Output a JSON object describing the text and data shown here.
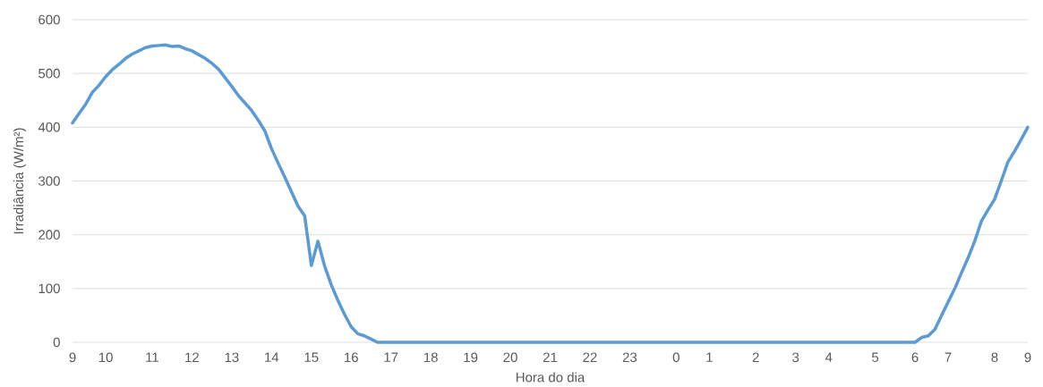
{
  "chart_data": {
    "type": "line",
    "xlabel": "Hora do dia",
    "ylabel": "Irradiância (W/m²)",
    "categories": [
      "9",
      null,
      null,
      null,
      null,
      "10",
      null,
      null,
      null,
      null,
      null,
      null,
      "11",
      null,
      null,
      null,
      null,
      null,
      "12",
      null,
      null,
      null,
      null,
      null,
      "13",
      null,
      null,
      null,
      null,
      null,
      "14",
      null,
      null,
      null,
      null,
      null,
      "15",
      null,
      null,
      null,
      null,
      null,
      "16",
      null,
      null,
      null,
      null,
      null,
      "17",
      null,
      null,
      null,
      null,
      null,
      "18",
      null,
      null,
      null,
      null,
      null,
      "19",
      null,
      null,
      null,
      null,
      null,
      "20",
      null,
      null,
      null,
      null,
      null,
      "21",
      null,
      null,
      null,
      null,
      null,
      "22",
      null,
      null,
      null,
      null,
      null,
      "23",
      null,
      null,
      null,
      null,
      null,
      null,
      "0",
      null,
      null,
      null,
      null,
      "1",
      null,
      null,
      null,
      null,
      null,
      null,
      "2",
      null,
      null,
      null,
      null,
      null,
      "3",
      null,
      null,
      null,
      null,
      "4",
      null,
      null,
      null,
      null,
      null,
      null,
      "5",
      null,
      null,
      null,
      null,
      null,
      "6",
      null,
      null,
      null,
      null,
      "7",
      null,
      null,
      null,
      null,
      null,
      null,
      "8",
      null,
      null,
      null,
      null,
      "9"
    ],
    "values": [
      408,
      426,
      443,
      465,
      478,
      494,
      507,
      517,
      528,
      536,
      542,
      548,
      551,
      552,
      553,
      550,
      551,
      546,
      542,
      535,
      528,
      519,
      508,
      492,
      476,
      459,
      445,
      431,
      413,
      393,
      360,
      333,
      307,
      280,
      253,
      235,
      143,
      188,
      142,
      107,
      78,
      52,
      29,
      16,
      12,
      6,
      0,
      0,
      0,
      0,
      0,
      0,
      0,
      0,
      0,
      0,
      0,
      0,
      0,
      0,
      0,
      0,
      0,
      0,
      0,
      0,
      0,
      0,
      0,
      0,
      0,
      0,
      0,
      0,
      0,
      0,
      0,
      0,
      0,
      0,
      0,
      0,
      0,
      0,
      0,
      0,
      0,
      0,
      0,
      0,
      0,
      0,
      0,
      0,
      0,
      0,
      0,
      0,
      0,
      0,
      0,
      0,
      0,
      0,
      0,
      0,
      0,
      0,
      0,
      0,
      0,
      0,
      0,
      0,
      0,
      0,
      0,
      0,
      0,
      0,
      0,
      0,
      0,
      0,
      0,
      0,
      0,
      0,
      9,
      12,
      24,
      50,
      75,
      100,
      129,
      157,
      188,
      225,
      246,
      266,
      300,
      335,
      355,
      377,
      400
    ],
    "color": "#5b9bd5",
    "ylim": [
      0,
      600
    ],
    "yticks": [
      0,
      100,
      200,
      300,
      400,
      500,
      600
    ],
    "grid": "y"
  }
}
